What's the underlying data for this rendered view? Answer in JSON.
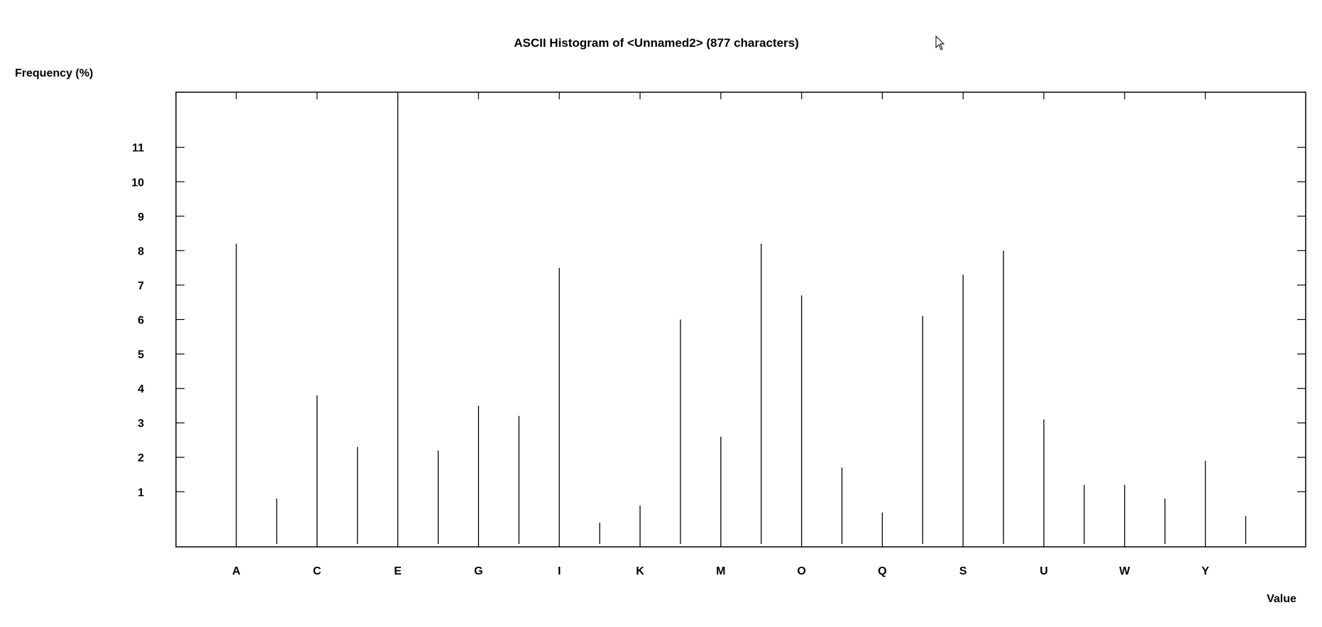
{
  "chart_data": {
    "type": "bar",
    "title": "ASCII Histogram of <Unnamed2> (877 characters)",
    "ylabel": "Frequency (%)",
    "xlabel": "Value",
    "categories": [
      "A",
      "B",
      "C",
      "D",
      "E",
      "F",
      "G",
      "H",
      "I",
      "J",
      "K",
      "L",
      "M",
      "N",
      "O",
      "P",
      "Q",
      "R",
      "S",
      "T",
      "U",
      "V",
      "W",
      "X",
      "Y",
      "Z"
    ],
    "category_labels_shown": [
      "A",
      "C",
      "E",
      "G",
      "I",
      "K",
      "M",
      "O",
      "Q",
      "S",
      "U",
      "W",
      "Y"
    ],
    "values": [
      8.2,
      0.8,
      3.8,
      2.3,
      12.5,
      2.2,
      3.5,
      3.2,
      7.5,
      0.1,
      0.6,
      6.0,
      2.6,
      8.2,
      6.7,
      1.7,
      0.4,
      6.1,
      7.3,
      8.0,
      3.1,
      1.2,
      1.2,
      0.8,
      1.9,
      0.3
    ],
    "yticks": [
      1,
      2,
      3,
      4,
      5,
      6,
      7,
      8,
      9,
      10,
      11
    ],
    "ylim": [
      -0.6,
      12.6
    ],
    "grid": false,
    "legend": "none"
  },
  "cursor": {
    "icon": "mouse-pointer-icon"
  },
  "colors": {
    "line": "#000000",
    "background": "#ffffff"
  }
}
